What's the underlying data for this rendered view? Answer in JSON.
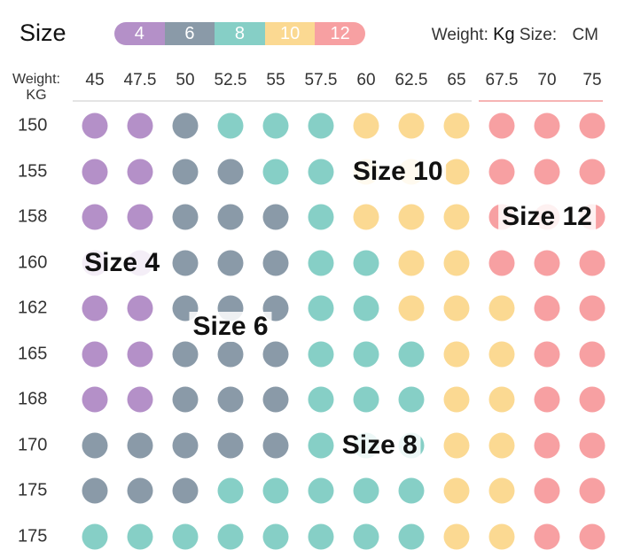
{
  "header": {
    "size_label": "Size",
    "weight_unit_label": "Weight:",
    "weight_unit_value": "Kg",
    "size_unit_label": "Size:",
    "size_unit_value": "CM",
    "weight_column_header": [
      "Weight:",
      "KG"
    ]
  },
  "colors": {
    "4": "#b490c8",
    "6": "#8a9aa8",
    "8": "#86cfc6",
    "10": "#fbd992",
    "12": "#f7a0a2"
  },
  "chart_data": {
    "type": "heatmap",
    "legend": [
      {
        "label": "4",
        "size": "4"
      },
      {
        "label": "6",
        "size": "6"
      },
      {
        "label": "8",
        "size": "8"
      },
      {
        "label": "10",
        "size": "10"
      },
      {
        "label": "12",
        "size": "12"
      }
    ],
    "x_values": [
      "45",
      "47.5",
      "50",
      "52.5",
      "55",
      "57.5",
      "60",
      "62.5",
      "65",
      "67.5",
      "70",
      "75"
    ],
    "y_values": [
      "150",
      "155",
      "158",
      "160",
      "162",
      "165",
      "168",
      "170",
      "175",
      "175"
    ],
    "cells": [
      [
        "4",
        "4",
        "6",
        "8",
        "8",
        "8",
        "10",
        "10",
        "10",
        "12",
        "12",
        "12"
      ],
      [
        "4",
        "4",
        "6",
        "6",
        "8",
        "8",
        "10",
        "10",
        "10",
        "12",
        "12",
        "12"
      ],
      [
        "4",
        "4",
        "6",
        "6",
        "6",
        "8",
        "10",
        "10",
        "10",
        "12",
        "12",
        "12"
      ],
      [
        "4",
        "4",
        "6",
        "6",
        "6",
        "8",
        "8",
        "10",
        "10",
        "12",
        "12",
        "12"
      ],
      [
        "4",
        "4",
        "6",
        "6",
        "6",
        "8",
        "8",
        "10",
        "10",
        "10",
        "12",
        "12"
      ],
      [
        "4",
        "4",
        "6",
        "6",
        "6",
        "8",
        "8",
        "8",
        "10",
        "10",
        "12",
        "12"
      ],
      [
        "4",
        "4",
        "6",
        "6",
        "6",
        "8",
        "8",
        "8",
        "10",
        "10",
        "12",
        "12"
      ],
      [
        "6",
        "6",
        "6",
        "6",
        "6",
        "8",
        "8",
        "8",
        "10",
        "10",
        "12",
        "12"
      ],
      [
        "6",
        "6",
        "6",
        "8",
        "8",
        "8",
        "8",
        "8",
        "10",
        "10",
        "12",
        "12"
      ],
      [
        "8",
        "8",
        "8",
        "8",
        "8",
        "8",
        "8",
        "8",
        "10",
        "10",
        "12",
        "12"
      ]
    ],
    "zone_labels": [
      {
        "text": "Size 10",
        "row": 1,
        "col": 6.7
      },
      {
        "text": "Size 12",
        "row": 2,
        "col": 10.0
      },
      {
        "text": "Size 4",
        "row": 3,
        "col": 0.6
      },
      {
        "text": "Size 6",
        "row": 4.4,
        "col": 3.0
      },
      {
        "text": "Size 8",
        "row": 7,
        "col": 6.3
      }
    ]
  }
}
